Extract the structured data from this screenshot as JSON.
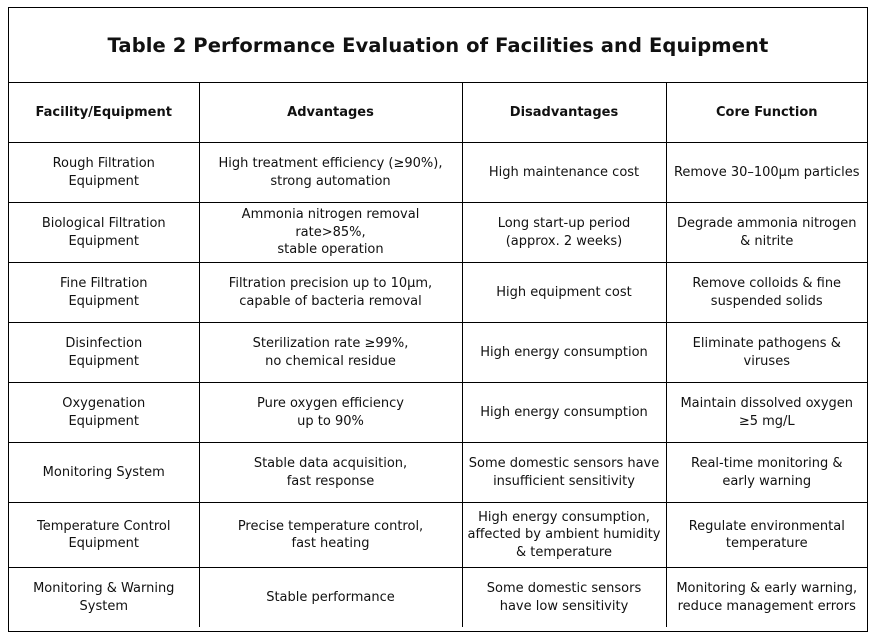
{
  "title": "Table 2 Performance Evaluation of Facilities and Equipment",
  "headers": [
    "Facility/Equipment",
    "Advantages",
    "Disadvantages",
    "Core Function"
  ],
  "rows": [
    [
      "Rough Filtration\nEquipment",
      "High treatment efficiency (≥90%),\nstrong automation",
      "High maintenance cost",
      "Remove 30–100μm particles"
    ],
    [
      "Biological Filtration\nEquipment",
      "Ammonia nitrogen removal\nrate>85%,\nstable operation",
      "Long start-up period\n(approx. 2 weeks)",
      "Degrade ammonia nitrogen\n& nitrite"
    ],
    [
      "Fine Filtration\nEquipment",
      "Filtration precision up to 10μm,\ncapable of bacteria removal",
      "High equipment cost",
      "Remove colloids & fine\nsuspended solids"
    ],
    [
      "Disinfection\nEquipment",
      "Sterilization rate ≥99%,\nno chemical residue",
      "High energy consumption",
      "Eliminate pathogens &\nviruses"
    ],
    [
      "Oxygenation\nEquipment",
      "Pure oxygen efficiency\nup to 90%",
      "High energy consumption",
      "Maintain dissolved oxygen\n≥5 mg/L"
    ],
    [
      "Monitoring System",
      "Stable data acquisition,\nfast response",
      "Some domestic sensors have\ninsufficient sensitivity",
      "Real-time monitoring &\nearly warning"
    ],
    [
      "Temperature Control\nEquipment",
      "Precise temperature control,\nfast heating",
      "High energy consumption,\naffected by ambient humidity\n& temperature",
      "Regulate environmental\ntemperature"
    ],
    [
      "Monitoring & Warning\nSystem",
      "Stable performance",
      "Some domestic sensors\nhave low sensitivity",
      "Monitoring & early warning,\nreduce management errors"
    ]
  ]
}
